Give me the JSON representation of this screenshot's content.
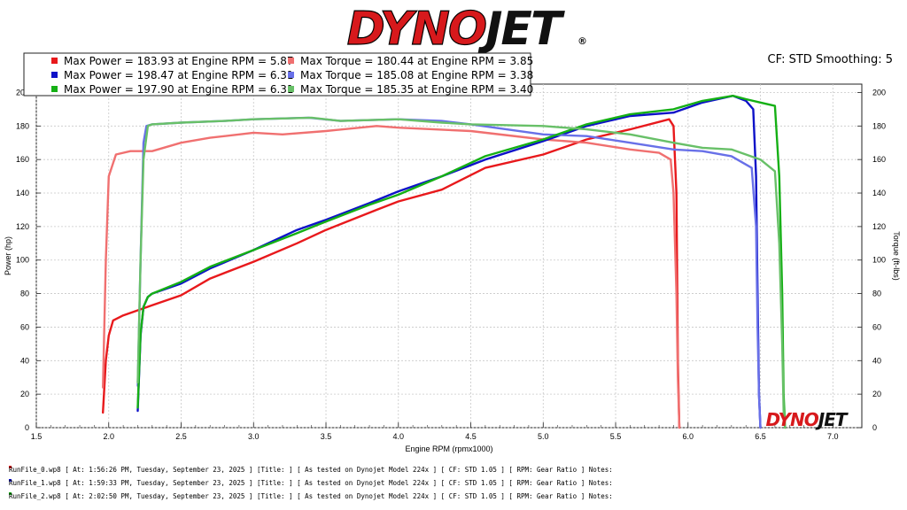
{
  "brand": {
    "name": "DYNOJET",
    "name_part1": "DYNO",
    "name_part2": "JET",
    "registered": "®",
    "color": "#d7191c"
  },
  "header": {
    "cf_smoothing": "CF: STD Smoothing: 5"
  },
  "legend": [
    {
      "color": "#e8191c",
      "power": "Max Power = 183.93 at Engine RPM = 5.87",
      "torque_color": "#f07070",
      "torque": "Max Torque = 180.44 at Engine RPM = 3.85"
    },
    {
      "color": "#0e12c8",
      "power": "Max Power = 198.47 at Engine RPM = 6.31",
      "torque_color": "#6870e8",
      "torque": "Max Torque = 185.08 at Engine RPM = 3.38"
    },
    {
      "color": "#15b015",
      "power": "Max Power = 197.90 at Engine RPM = 6.31",
      "torque_color": "#68c068",
      "torque": "Max Torque = 185.35 at Engine RPM = 3.40"
    }
  ],
  "footer": [
    {
      "color": "#e8191c",
      "text": "RunFile_0.wp8 [ At: 1:56:26 PM, Tuesday, September 23, 2025 ] [Title: ]  [ As tested on Dynojet Model 224x ] [ CF: STD 1.05 ] [ RPM: Gear Ratio ] Notes:"
    },
    {
      "color": "#0e12c8",
      "text": "RunFile_1.wp8 [ At: 1:59:33 PM, Tuesday, September 23, 2025 ] [Title: ]  [ As tested on Dynojet Model 224x ] [ CF: STD 1.05 ] [ RPM: Gear Ratio ] Notes:"
    },
    {
      "color": "#15b015",
      "text": "RunFile_2.wp8 [ At: 2:02:50 PM, Tuesday, September 23, 2025 ] [Title: ]  [ As tested on Dynojet Model 224x ] [ CF: STD 1.05 ] [ RPM: Gear Ratio ] Notes:"
    }
  ],
  "chart_data": {
    "type": "line",
    "xlabel": "Engine RPM (rpmx1000)",
    "ylabel": "Power (hp)",
    "y2label": "Torque (ft-lbs)",
    "xlim": [
      1.5,
      7.2
    ],
    "ylim": [
      0,
      205
    ],
    "y2lim": [
      0,
      205
    ],
    "xticks": [
      1.5,
      2.0,
      2.5,
      3.0,
      3.5,
      4.0,
      4.5,
      5.0,
      5.5,
      6.0,
      6.5,
      7.0
    ],
    "xtick_labels": [
      "1.5",
      "2.0",
      "2.5",
      "3.0",
      "3.5",
      "4.0",
      "4.5",
      "5.0",
      "5.5",
      "6.0",
      "6.5",
      "7.0"
    ],
    "yticks": [
      0,
      20,
      40,
      60,
      80,
      100,
      120,
      140,
      160,
      180,
      200
    ],
    "ytick_labels": [
      "0",
      "20",
      "40",
      "60",
      "80",
      "100",
      "120",
      "140",
      "160",
      "180",
      "200"
    ],
    "grid": true,
    "series": [
      {
        "run": 0,
        "kind": "power",
        "color": "#e8191c",
        "x": [
          1.96,
          1.98,
          2.0,
          2.03,
          2.1,
          2.2,
          2.3,
          2.5,
          2.7,
          3.0,
          3.3,
          3.5,
          3.85,
          4.0,
          4.3,
          4.6,
          5.0,
          5.3,
          5.6,
          5.87,
          5.9,
          5.92,
          5.93,
          5.94
        ],
        "y": [
          9,
          40,
          55,
          64,
          67,
          70,
          73,
          79,
          89,
          99,
          110,
          118,
          130,
          135,
          142,
          155,
          163,
          172,
          178,
          184,
          180,
          140,
          40,
          0
        ]
      },
      {
        "run": 0,
        "kind": "torque",
        "color": "#f07070",
        "x": [
          1.96,
          1.98,
          2.0,
          2.05,
          2.15,
          2.3,
          2.5,
          2.7,
          3.0,
          3.2,
          3.5,
          3.85,
          4.0,
          4.5,
          5.0,
          5.3,
          5.6,
          5.8,
          5.88,
          5.9,
          5.92,
          5.93,
          5.94
        ],
        "y": [
          24,
          100,
          150,
          163,
          165,
          165,
          170,
          173,
          176,
          175,
          177,
          180,
          179,
          177,
          172,
          170,
          166,
          164,
          160,
          140,
          80,
          30,
          0
        ]
      },
      {
        "run": 1,
        "kind": "power",
        "color": "#0e12c8",
        "x": [
          2.2,
          2.22,
          2.24,
          2.27,
          2.3,
          2.5,
          2.7,
          3.0,
          3.3,
          3.5,
          3.8,
          4.0,
          4.3,
          4.6,
          5.0,
          5.3,
          5.6,
          5.9,
          6.1,
          6.31,
          6.4,
          6.45,
          6.47,
          6.48,
          6.49,
          6.5
        ],
        "y": [
          10,
          55,
          72,
          78,
          80,
          86,
          95,
          106,
          118,
          124,
          134,
          141,
          150,
          160,
          171,
          180,
          186,
          188,
          194,
          198,
          195,
          190,
          150,
          80,
          20,
          0
        ]
      },
      {
        "run": 1,
        "kind": "torque",
        "color": "#6870e8",
        "x": [
          2.2,
          2.22,
          2.24,
          2.26,
          2.3,
          2.5,
          2.8,
          3.0,
          3.38,
          3.6,
          4.0,
          4.3,
          4.5,
          5.0,
          5.3,
          5.6,
          5.9,
          6.1,
          6.3,
          6.44,
          6.47,
          6.48,
          6.49,
          6.5
        ],
        "y": [
          25,
          100,
          170,
          180,
          181,
          182,
          183,
          184,
          185,
          183,
          184,
          183,
          181,
          175,
          174,
          170,
          166,
          165,
          162,
          155,
          120,
          60,
          20,
          0
        ]
      },
      {
        "run": 2,
        "kind": "power",
        "color": "#15b015",
        "x": [
          2.2,
          2.22,
          2.24,
          2.27,
          2.3,
          2.5,
          2.7,
          3.0,
          3.3,
          3.5,
          3.8,
          4.0,
          4.3,
          4.6,
          5.0,
          5.3,
          5.6,
          5.9,
          6.1,
          6.31,
          6.4,
          6.5,
          6.6,
          6.63,
          6.65,
          6.66,
          6.67
        ],
        "y": [
          12,
          56,
          72,
          78,
          80,
          87,
          96,
          106,
          116,
          123,
          133,
          139,
          150,
          162,
          172,
          181,
          187,
          190,
          195,
          198,
          196,
          194,
          192,
          150,
          80,
          20,
          0
        ]
      },
      {
        "run": 2,
        "kind": "torque",
        "color": "#68c068",
        "x": [
          2.2,
          2.22,
          2.24,
          2.27,
          2.3,
          2.5,
          2.8,
          3.0,
          3.4,
          3.6,
          4.0,
          4.3,
          4.5,
          5.0,
          5.3,
          5.6,
          5.9,
          6.1,
          6.3,
          6.5,
          6.6,
          6.63,
          6.65,
          6.66,
          6.67
        ],
        "y": [
          27,
          100,
          160,
          180,
          181,
          182,
          183,
          184,
          185,
          183,
          184,
          182,
          181,
          180,
          178,
          175,
          170,
          167,
          166,
          160,
          153,
          110,
          50,
          10,
          0
        ]
      }
    ]
  }
}
